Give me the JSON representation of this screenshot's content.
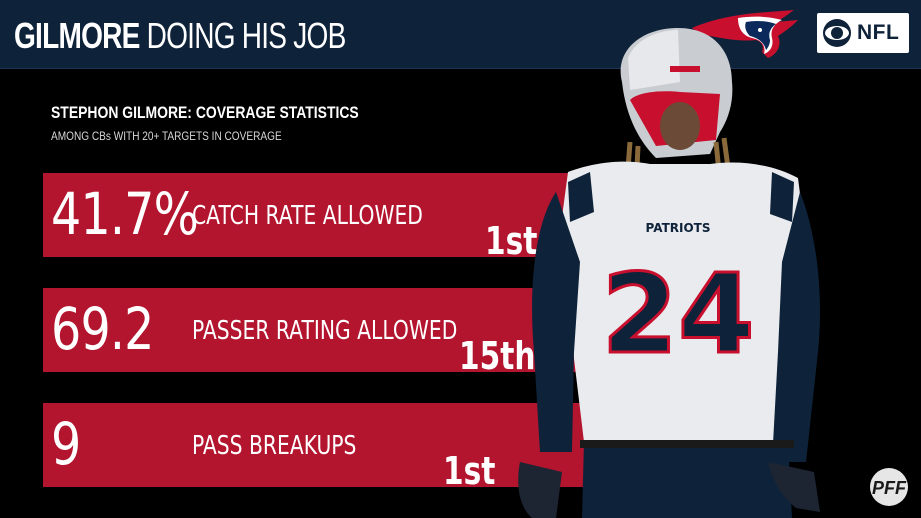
{
  "header": {
    "title_bold": "GILMORE",
    "title_light": "DOING HIS JOB",
    "background_color": "#0e2239"
  },
  "logos": {
    "team_logo": "patriots-logo-icon",
    "network_logo": "cbs-eye-icon",
    "network_text": "NFL",
    "brand_logo": "pff-logo-icon"
  },
  "subtitle": "STEPHON GILMORE: COVERAGE STATISTICS",
  "caption": "AMONG CBs WITH 20+ TARGETS IN COVERAGE",
  "stats": [
    {
      "value": "41.7%",
      "label": "CATCH RATE ALLOWED",
      "rank": "1st"
    },
    {
      "value": "69.2",
      "label": "PASSER RATING ALLOWED",
      "rank": "15th"
    },
    {
      "value": "9",
      "label": "PASS BREAKUPS",
      "rank": "1st"
    }
  ],
  "player": {
    "jersey_number": "24",
    "jersey_team": "PATRIOTS"
  },
  "colors": {
    "accent_red": "#b3142e",
    "navy": "#0e2239",
    "background": "#000000"
  }
}
